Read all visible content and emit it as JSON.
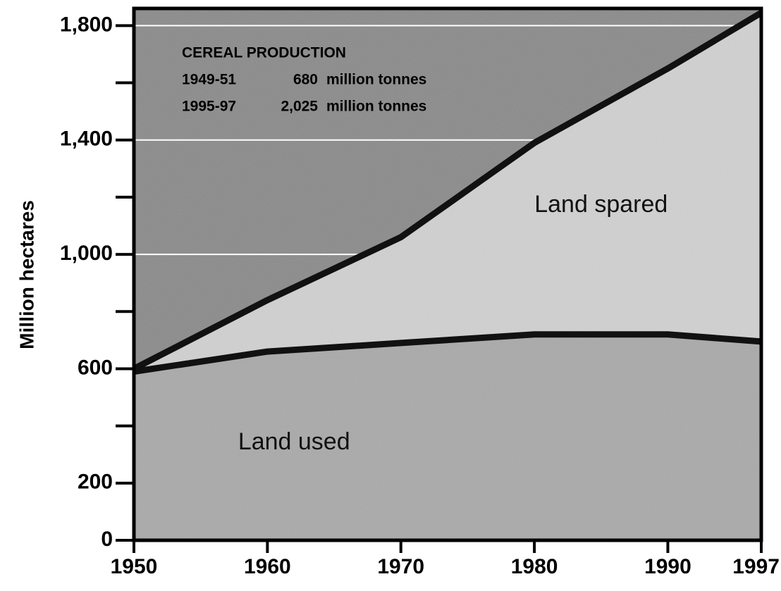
{
  "chart_data": {
    "type": "area",
    "y_label": "Million hectares",
    "x": [
      1950,
      1960,
      1970,
      1980,
      1990,
      1997
    ],
    "series": [
      {
        "color": "#d2d2d2",
        "values": [
          600,
          840,
          1060,
          1390,
          1650,
          1845
        ]
      },
      {
        "color": "#a9a9a9",
        "values": [
          590,
          660,
          690,
          720,
          720,
          695
        ]
      }
    ],
    "xlim": [
      1950,
      1997
    ],
    "xticks": [
      1950,
      1960,
      1970,
      1980,
      1990,
      1997
    ],
    "ylim": [
      0,
      1860
    ],
    "yticks": [
      0,
      200,
      {
        "value": 600,
        "label": "600"
      },
      {
        "value": 1000,
        "label": "1,000"
      },
      {
        "value": 1400,
        "label": "1,400"
      },
      {
        "value": 1800,
        "label": "1,800"
      }
    ],
    "yminor_ticks": [
      400,
      800,
      1200,
      1600
    ],
    "grid_lines": [
      1000,
      1400,
      1800
    ],
    "annotations": [
      {
        "text": "Land spared",
        "x": 1985,
        "y": 1170
      },
      {
        "text": "Land used",
        "x": 1962,
        "y": 340
      }
    ],
    "inset": {
      "title": "CEREAL PRODUCTION",
      "rows": [
        [
          "1949-51",
          "680",
          "million tonnes"
        ],
        [
          "1995-97",
          "2,025",
          "million tonnes"
        ]
      ]
    }
  }
}
